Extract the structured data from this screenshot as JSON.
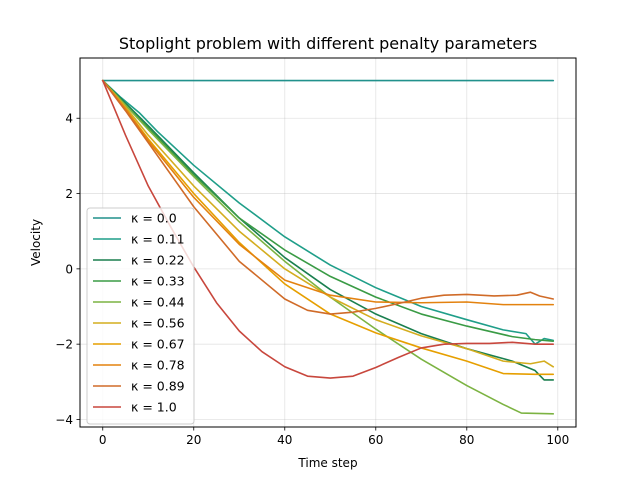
{
  "chart_data": {
    "type": "line",
    "title": "Stoplight problem with different penalty parameters",
    "xlabel": "Time step",
    "ylabel": "Velocity",
    "xlim": [
      -5,
      104
    ],
    "ylim": [
      -4.2,
      5.6
    ],
    "xticks": [
      0,
      20,
      40,
      60,
      80,
      100
    ],
    "yticks": [
      -4,
      -2,
      0,
      2,
      4
    ],
    "grid": true,
    "legend_position": "lower-left",
    "series": [
      {
        "name": "κ = 0.0",
        "color": "#21918c",
        "points": [
          [
            0,
            5
          ],
          [
            99,
            5
          ]
        ]
      },
      {
        "name": "κ = 0.11",
        "color": "#1f9e89",
        "points": [
          [
            0,
            5
          ],
          [
            4,
            4.55
          ],
          [
            8,
            4.15
          ],
          [
            12,
            3.65
          ],
          [
            20,
            2.75
          ],
          [
            30,
            1.75
          ],
          [
            40,
            0.85
          ],
          [
            50,
            0.1
          ],
          [
            60,
            -0.5
          ],
          [
            70,
            -1.0
          ],
          [
            80,
            -1.35
          ],
          [
            88,
            -1.62
          ],
          [
            93,
            -1.72
          ],
          [
            95,
            -2.0
          ],
          [
            97,
            -1.85
          ],
          [
            99,
            -1.9
          ]
        ]
      },
      {
        "name": "κ = 0.22",
        "color": "#1a7f4f",
        "points": [
          [
            0,
            5
          ],
          [
            5,
            4.4
          ],
          [
            10,
            3.8
          ],
          [
            20,
            2.55
          ],
          [
            30,
            1.35
          ],
          [
            40,
            0.3
          ],
          [
            50,
            -0.55
          ],
          [
            60,
            -1.2
          ],
          [
            70,
            -1.72
          ],
          [
            80,
            -2.12
          ],
          [
            90,
            -2.45
          ],
          [
            95,
            -2.7
          ],
          [
            97,
            -2.95
          ],
          [
            99,
            -2.95
          ]
        ]
      },
      {
        "name": "κ = 0.33",
        "color": "#3a9b45",
        "points": [
          [
            0,
            5
          ],
          [
            5,
            4.35
          ],
          [
            10,
            3.75
          ],
          [
            20,
            2.5
          ],
          [
            30,
            1.35
          ],
          [
            40,
            0.5
          ],
          [
            50,
            -0.2
          ],
          [
            60,
            -0.75
          ],
          [
            70,
            -1.2
          ],
          [
            80,
            -1.52
          ],
          [
            90,
            -1.8
          ],
          [
            95,
            -1.88
          ],
          [
            99,
            -1.92
          ]
        ]
      },
      {
        "name": "κ = 0.44",
        "color": "#7cb342",
        "points": [
          [
            0,
            5
          ],
          [
            5,
            4.35
          ],
          [
            10,
            3.7
          ],
          [
            20,
            2.45
          ],
          [
            30,
            1.25
          ],
          [
            40,
            0.2
          ],
          [
            50,
            -0.75
          ],
          [
            60,
            -1.6
          ],
          [
            70,
            -2.4
          ],
          [
            80,
            -3.1
          ],
          [
            88,
            -3.6
          ],
          [
            92,
            -3.83
          ],
          [
            99,
            -3.85
          ]
        ]
      },
      {
        "name": "κ = 0.56",
        "color": "#d4ad1f",
        "points": [
          [
            0,
            5
          ],
          [
            5,
            4.3
          ],
          [
            10,
            3.55
          ],
          [
            20,
            2.2
          ],
          [
            30,
            1.0
          ],
          [
            40,
            0.0
          ],
          [
            50,
            -0.75
          ],
          [
            60,
            -1.35
          ],
          [
            70,
            -1.78
          ],
          [
            80,
            -2.12
          ],
          [
            88,
            -2.45
          ],
          [
            94,
            -2.52
          ],
          [
            97,
            -2.45
          ],
          [
            99,
            -2.6
          ]
        ]
      },
      {
        "name": "κ = 0.67",
        "color": "#e69f00",
        "points": [
          [
            0,
            5
          ],
          [
            5,
            4.25
          ],
          [
            10,
            3.45
          ],
          [
            20,
            2.0
          ],
          [
            30,
            0.7
          ],
          [
            40,
            -0.4
          ],
          [
            50,
            -1.2
          ],
          [
            60,
            -1.7
          ],
          [
            70,
            -2.1
          ],
          [
            80,
            -2.45
          ],
          [
            88,
            -2.78
          ],
          [
            95,
            -2.8
          ],
          [
            99,
            -2.8
          ]
        ]
      },
      {
        "name": "κ = 0.78",
        "color": "#e3820f",
        "points": [
          [
            0,
            5
          ],
          [
            5,
            4.25
          ],
          [
            10,
            3.4
          ],
          [
            20,
            1.9
          ],
          [
            30,
            0.65
          ],
          [
            40,
            -0.3
          ],
          [
            50,
            -0.7
          ],
          [
            60,
            -0.88
          ],
          [
            70,
            -0.9
          ],
          [
            80,
            -0.88
          ],
          [
            88,
            -0.95
          ],
          [
            99,
            -0.95
          ]
        ]
      },
      {
        "name": "κ = 0.89",
        "color": "#d06b28",
        "points": [
          [
            0,
            5
          ],
          [
            5,
            4.2
          ],
          [
            10,
            3.35
          ],
          [
            20,
            1.65
          ],
          [
            30,
            0.2
          ],
          [
            40,
            -0.8
          ],
          [
            45,
            -1.1
          ],
          [
            50,
            -1.2
          ],
          [
            55,
            -1.15
          ],
          [
            60,
            -1.05
          ],
          [
            65,
            -0.92
          ],
          [
            70,
            -0.78
          ],
          [
            75,
            -0.7
          ],
          [
            80,
            -0.68
          ],
          [
            86,
            -0.72
          ],
          [
            91,
            -0.7
          ],
          [
            94,
            -0.62
          ],
          [
            96,
            -0.72
          ],
          [
            99,
            -0.8
          ]
        ]
      },
      {
        "name": "κ = 1.0",
        "color": "#c8473d",
        "points": [
          [
            0,
            5
          ],
          [
            5,
            3.55
          ],
          [
            10,
            2.2
          ],
          [
            15,
            1.1
          ],
          [
            20,
            0.05
          ],
          [
            25,
            -0.9
          ],
          [
            30,
            -1.65
          ],
          [
            35,
            -2.2
          ],
          [
            40,
            -2.6
          ],
          [
            45,
            -2.85
          ],
          [
            50,
            -2.9
          ],
          [
            55,
            -2.85
          ],
          [
            60,
            -2.62
          ],
          [
            65,
            -2.35
          ],
          [
            70,
            -2.1
          ],
          [
            75,
            -2.0
          ],
          [
            80,
            -1.98
          ],
          [
            85,
            -1.98
          ],
          [
            90,
            -1.95
          ],
          [
            95,
            -2.0
          ],
          [
            99,
            -2.0
          ]
        ]
      }
    ]
  }
}
